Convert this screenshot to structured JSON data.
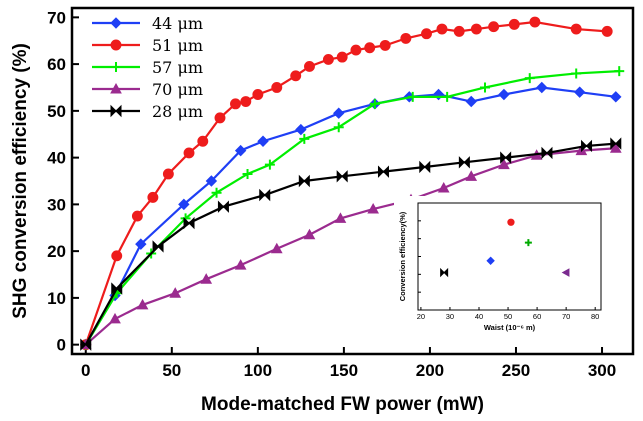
{
  "chart_data": [
    {
      "type": "line",
      "title": "",
      "xlabel": "Mode-matched FW power (mW)",
      "ylabel": "SHG conversion efficiency (%)",
      "xlim": [
        -8,
        318
      ],
      "ylim": [
        -2,
        72
      ],
      "xticks": [
        0,
        50,
        100,
        150,
        200,
        250,
        300
      ],
      "yticks": [
        0,
        10,
        20,
        30,
        40,
        50,
        60,
        70
      ],
      "grid": false,
      "legend_position": "top-left",
      "series": [
        {
          "name": "44 μm",
          "color": "#1f3ff5",
          "marker": "diamond",
          "x": [
            0,
            17,
            32,
            57,
            73,
            90,
            103,
            125,
            147,
            168,
            188,
            205,
            224,
            243,
            265,
            287,
            308
          ],
          "y": [
            0,
            10.5,
            21.5,
            30,
            35,
            41.5,
            43.5,
            46,
            49.5,
            51.5,
            53,
            53.5,
            52,
            53.5,
            55,
            54,
            53
          ]
        },
        {
          "name": "51 μm",
          "color": "#ee1c1c",
          "marker": "circle",
          "x": [
            0,
            18,
            30,
            39,
            48,
            60,
            68,
            78,
            87,
            93,
            100,
            111,
            122,
            130,
            141,
            149,
            157,
            165,
            174,
            186,
            198,
            207,
            217,
            227,
            237,
            249,
            261,
            285,
            303
          ],
          "y": [
            0,
            19,
            27.5,
            31.5,
            36.5,
            41,
            43.5,
            48.5,
            51.5,
            52,
            53.5,
            55,
            57.5,
            59.5,
            61,
            61.5,
            63,
            63.5,
            64,
            65.5,
            66.5,
            67.5,
            67,
            67.5,
            68,
            68.5,
            69,
            67.5,
            67
          ]
        },
        {
          "name": "57 μm",
          "color": "#00ee00",
          "marker": "plus",
          "x": [
            0,
            18,
            38,
            58,
            76,
            94,
            107,
            127,
            147,
            168,
            190,
            210,
            232,
            258,
            285,
            310
          ],
          "y": [
            0,
            11,
            19.5,
            27,
            32.5,
            36.5,
            38.5,
            44,
            46.5,
            51.5,
            53,
            53,
            55,
            57,
            58,
            58.5
          ]
        },
        {
          "name": "70 μm",
          "color": "#9b2b8f",
          "marker": "triangle",
          "x": [
            0,
            17,
            33,
            52,
            70,
            90,
            111,
            130,
            148,
            167,
            189,
            208,
            224,
            243,
            262,
            288,
            308
          ],
          "y": [
            0,
            5.5,
            8.5,
            11,
            14,
            17,
            20.5,
            23.5,
            27,
            29,
            31,
            33.5,
            36,
            38.5,
            40.5,
            41.5,
            42
          ]
        },
        {
          "name": "28 μm",
          "color": "#000000",
          "marker": "bowtie",
          "x": [
            0,
            18,
            42,
            60,
            80,
            104,
            127,
            149,
            173,
            197,
            220,
            244,
            268,
            291,
            308
          ],
          "y": [
            0,
            12,
            21,
            26,
            29.5,
            32,
            35,
            36,
            37,
            38,
            39,
            40,
            41,
            42.5,
            43
          ]
        }
      ]
    },
    {
      "type": "scatter",
      "title": "",
      "xlabel": "Waist (10⁻⁶ m)",
      "ylabel": "Conversion efficiency(%)",
      "xlim": [
        19,
        82
      ],
      "ylim": [
        0,
        1
      ],
      "xticks": [
        20,
        30,
        40,
        50,
        60,
        70,
        80
      ],
      "grid": false,
      "points": [
        {
          "x": 28,
          "y": 0.35,
          "color": "#000000",
          "marker": "bowtie"
        },
        {
          "x": 44,
          "y": 0.46,
          "color": "#1f3ff5",
          "marker": "diamond"
        },
        {
          "x": 51,
          "y": 0.82,
          "color": "#ee1c1c",
          "marker": "circle"
        },
        {
          "x": 57,
          "y": 0.63,
          "color": "#00aa00",
          "marker": "plus"
        },
        {
          "x": 70,
          "y": 0.35,
          "color": "#7b2b8f",
          "marker": "triangle-left"
        }
      ]
    }
  ]
}
